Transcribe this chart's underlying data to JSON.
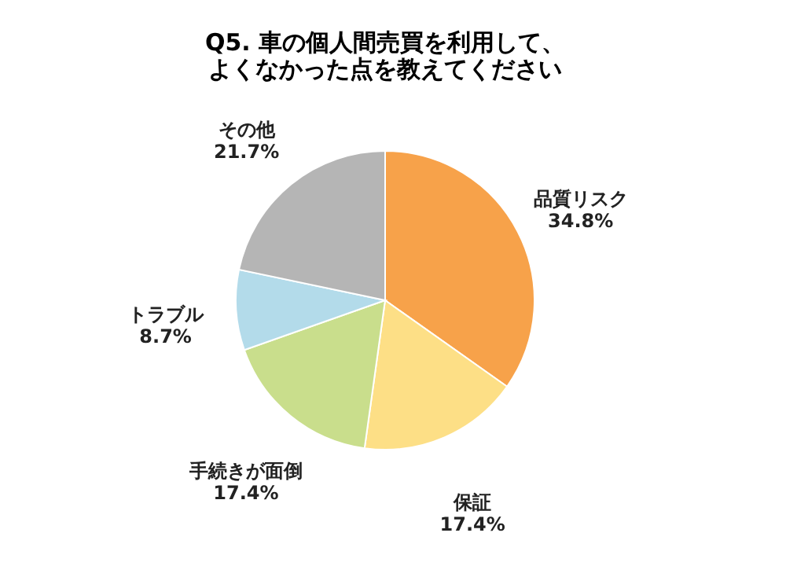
{
  "chart_data": {
    "type": "pie",
    "title": "Q5. 車の個人間売買を利用して、よくなかった点を教えてください",
    "categories": [
      "品質リスク",
      "保証",
      "手続きが面倒",
      "トラブル",
      "その他"
    ],
    "values": [
      34.8,
      17.4,
      17.4,
      8.7,
      21.7
    ],
    "value_labels": [
      "34.8%",
      "17.4%",
      "17.4%",
      "8.7%",
      "21.7%"
    ],
    "colors": [
      "#f7a24a",
      "#fddf86",
      "#c9de8c",
      "#b3dbea",
      "#b5b5b5"
    ],
    "legend": false
  }
}
